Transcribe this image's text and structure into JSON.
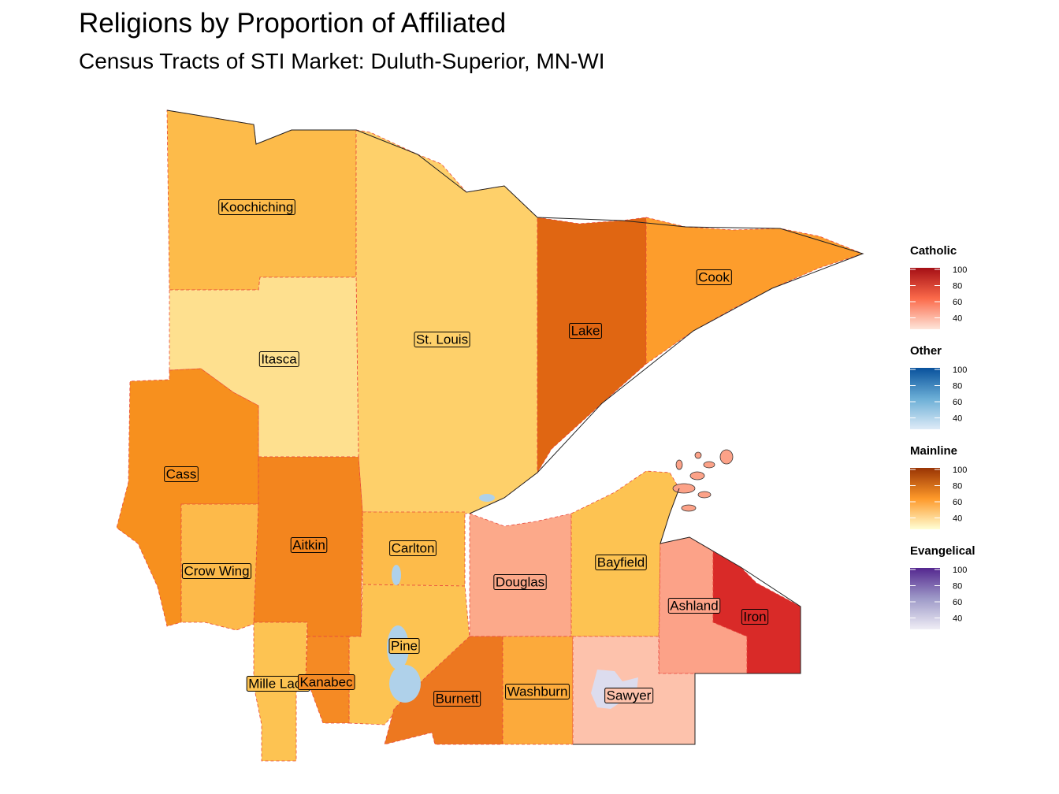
{
  "title": "Religions by Proportion of Affiliated",
  "subtitle": "Census Tracts of STI Market: Duluth-Superior, MN-WI",
  "legends": [
    {
      "name": "Catholic",
      "ticks": [
        "100",
        "80",
        "60",
        "40"
      ],
      "colors": [
        "#fee5d9",
        "#fb6a4a",
        "#a50f15"
      ]
    },
    {
      "name": "Other",
      "ticks": [
        "100",
        "80",
        "60",
        "40"
      ],
      "colors": [
        "#deebf7",
        "#6baed6",
        "#08519c"
      ]
    },
    {
      "name": "Mainline",
      "ticks": [
        "100",
        "80",
        "60",
        "40"
      ],
      "colors": [
        "#ffffd4",
        "#fe9929",
        "#993404"
      ]
    },
    {
      "name": "Evangelical",
      "ticks": [
        "100",
        "80",
        "60",
        "40"
      ],
      "colors": [
        "#efedf5",
        "#9e9ac8",
        "#54278f"
      ]
    }
  ],
  "counties": [
    {
      "name": "Koochiching",
      "dominant": "Mainline",
      "color": "#fdbb4a"
    },
    {
      "name": "St. Louis",
      "dominant": "Mainline",
      "color": "#fed06a"
    },
    {
      "name": "Lake",
      "dominant": "Mainline",
      "color": "#e06612"
    },
    {
      "name": "Cook",
      "dominant": "Mainline",
      "color": "#fd9d2c"
    },
    {
      "name": "Itasca",
      "dominant": "Mainline",
      "color": "#fee08f"
    },
    {
      "name": "Cass",
      "dominant": "Mainline",
      "color": "#f7901e"
    },
    {
      "name": "Crow Wing",
      "dominant": "Mainline",
      "color": "#fdba4a"
    },
    {
      "name": "Aitkin",
      "dominant": "Mainline",
      "color": "#f3851e"
    },
    {
      "name": "Carlton",
      "dominant": "Mainline",
      "color": "#fdbb4a"
    },
    {
      "name": "Pine",
      "dominant": "Mainline",
      "color": "#fdc352"
    },
    {
      "name": "Mille Lacs",
      "dominant": "Mainline",
      "color": "#fdc352"
    },
    {
      "name": "Kanabec",
      "dominant": "Mainline",
      "color": "#f58a24"
    },
    {
      "name": "Douglas",
      "dominant": "Catholic",
      "color": "#fca98a"
    },
    {
      "name": "Bayfield",
      "dominant": "Mainline",
      "color": "#fdc352"
    },
    {
      "name": "Ashland",
      "dominant": "Catholic",
      "color": "#fca288"
    },
    {
      "name": "Iron",
      "dominant": "Catholic",
      "color": "#d92a28"
    },
    {
      "name": "Burnett",
      "dominant": "Mainline",
      "color": "#ed7820"
    },
    {
      "name": "Washburn",
      "dominant": "Mainline",
      "color": "#fcaa3b"
    },
    {
      "name": "Sawyer",
      "dominant": "Catholic",
      "color": "#fdc2ac"
    }
  ],
  "water_color": "#afd1ea",
  "evangelical_patch_color": "#dcdcee"
}
